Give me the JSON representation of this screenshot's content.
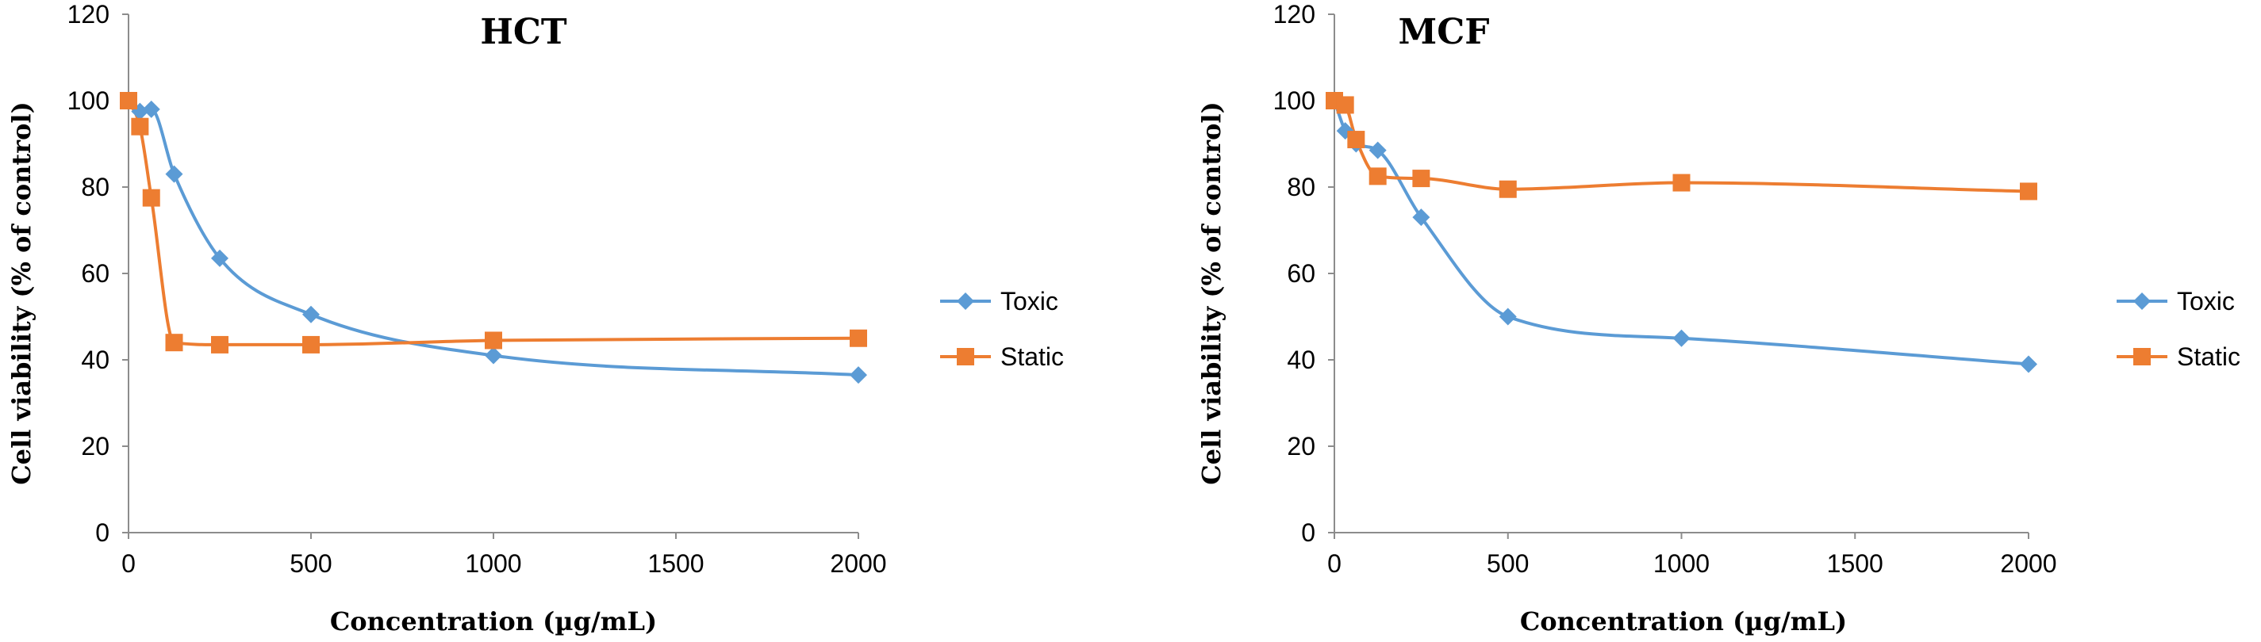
{
  "chart_data": [
    {
      "type": "line",
      "title": "HCT",
      "xlabel": "Concentration (µg/mL)",
      "ylabel": "Cell viability (% of control)",
      "xlim": [
        0,
        2000
      ],
      "ylim": [
        0,
        120
      ],
      "xticks": [
        0,
        500,
        1000,
        1500,
        2000
      ],
      "yticks": [
        0,
        20,
        40,
        60,
        80,
        100,
        120
      ],
      "grid": false,
      "legend_position": "right",
      "series": [
        {
          "name": "Toxic",
          "color": "#5b9bd5",
          "marker": "diamond",
          "x": [
            0,
            31.25,
            62.5,
            125,
            250,
            500,
            1000,
            2000
          ],
          "y": [
            100,
            97.5,
            98,
            83,
            63.5,
            50.5,
            41,
            36.5
          ]
        },
        {
          "name": "Static",
          "color": "#ed7d31",
          "marker": "square",
          "x": [
            0,
            31.25,
            62.5,
            125,
            250,
            500,
            1000,
            2000
          ],
          "y": [
            100,
            94,
            77.5,
            44,
            43.5,
            43.5,
            44.5,
            45
          ]
        }
      ]
    },
    {
      "type": "line",
      "title": "MCF",
      "xlabel": "Concentration (µg/mL)",
      "ylabel": "Cell viability (% of control)",
      "xlim": [
        0,
        2000
      ],
      "ylim": [
        0,
        120
      ],
      "xticks": [
        0,
        500,
        1000,
        1500,
        2000
      ],
      "yticks": [
        0,
        20,
        40,
        60,
        80,
        100,
        120
      ],
      "grid": false,
      "legend_position": "right",
      "series": [
        {
          "name": "Toxic",
          "color": "#5b9bd5",
          "marker": "diamond",
          "x": [
            0,
            31.25,
            62.5,
            125,
            250,
            500,
            1000,
            2000
          ],
          "y": [
            100,
            93,
            90,
            88.5,
            73,
            50,
            45,
            39
          ]
        },
        {
          "name": "Static",
          "color": "#ed7d31",
          "marker": "square",
          "x": [
            0,
            31.25,
            62.5,
            125,
            250,
            500,
            1000,
            2000
          ],
          "y": [
            100,
            99,
            91,
            82.5,
            82,
            79.5,
            81,
            79
          ]
        }
      ]
    }
  ]
}
